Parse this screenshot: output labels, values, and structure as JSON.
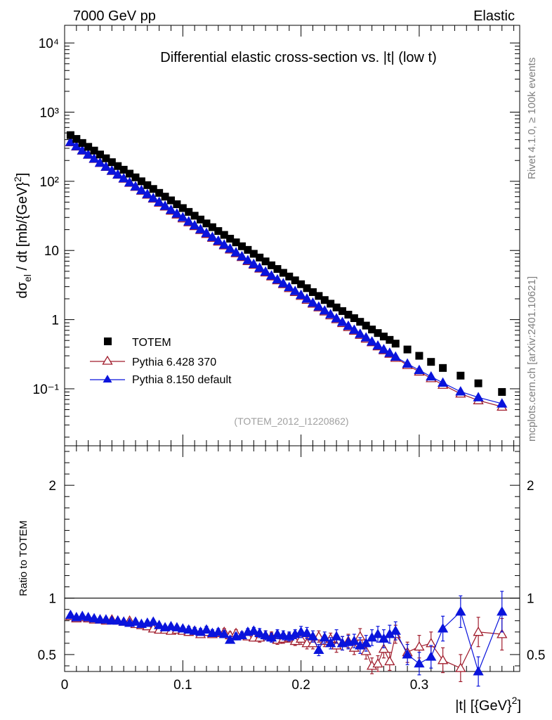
{
  "header": {
    "energy": "7000 GeV pp",
    "process": "Elastic"
  },
  "side_labels": {
    "rivet": "Rivet 4.1.0, ≥ 100k events",
    "source": "mcplots.cern.ch [arXiv:2401.10621]"
  },
  "chart_data": [
    {
      "type": "scatter",
      "title": "Differential elastic cross-section vs. |t| (low t)",
      "xlabel": "|t| [{GeV}²]",
      "ylabel": "dσel / dt [mb/{GeV}²]",
      "yscale": "log",
      "xlim": [
        0,
        0.385
      ],
      "ylim": [
        0.015,
        18000
      ],
      "analysis_id": "(TOTEM_2012_I1220862)",
      "ytick_labels": [
        "10⁻¹",
        "1",
        "10",
        "10²",
        "10³",
        "10⁴"
      ],
      "legend": {
        "position": "bottom-left",
        "entries": [
          "TOTEM",
          "Pythia 6.428 370",
          "Pythia 8.150 default"
        ]
      },
      "series": [
        {
          "name": "TOTEM",
          "color": "#000000",
          "marker": "square",
          "x": [
            0.005,
            0.01,
            0.015,
            0.02,
            0.025,
            0.03,
            0.035,
            0.04,
            0.045,
            0.05,
            0.055,
            0.06,
            0.065,
            0.07,
            0.075,
            0.08,
            0.085,
            0.09,
            0.095,
            0.1,
            0.105,
            0.11,
            0.115,
            0.12,
            0.125,
            0.13,
            0.135,
            0.14,
            0.145,
            0.15,
            0.155,
            0.16,
            0.165,
            0.17,
            0.175,
            0.18,
            0.185,
            0.19,
            0.195,
            0.2,
            0.205,
            0.21,
            0.215,
            0.22,
            0.225,
            0.23,
            0.235,
            0.24,
            0.245,
            0.25,
            0.255,
            0.26,
            0.265,
            0.27,
            0.275,
            0.28,
            0.29,
            0.3,
            0.31,
            0.32,
            0.335,
            0.35,
            0.37
          ],
          "values": [
            465,
            410,
            358,
            315,
            278,
            244,
            215,
            189,
            166,
            147,
            129,
            114,
            100,
            88,
            77.5,
            68,
            60,
            53,
            46.6,
            41,
            36.1,
            31.8,
            28,
            24.6,
            21.7,
            19.1,
            16.8,
            14.8,
            13.1,
            11.5,
            10.2,
            8.95,
            7.9,
            6.95,
            6.1,
            5.4,
            4.75,
            4.2,
            3.7,
            3.25,
            2.85,
            2.5,
            2.2,
            1.92,
            1.7,
            1.5,
            1.33,
            1.18,
            1.05,
            0.93,
            0.82,
            0.72,
            0.64,
            0.57,
            0.51,
            0.45,
            0.37,
            0.3,
            0.245,
            0.2,
            0.155,
            0.12,
            0.09
          ]
        },
        {
          "name": "Pythia 6.428 370",
          "color": "#a01c2c",
          "marker": "open-triangle",
          "x": [
            0.005,
            0.01,
            0.015,
            0.02,
            0.025,
            0.03,
            0.035,
            0.04,
            0.045,
            0.05,
            0.055,
            0.06,
            0.065,
            0.07,
            0.075,
            0.08,
            0.085,
            0.09,
            0.095,
            0.1,
            0.105,
            0.11,
            0.115,
            0.12,
            0.125,
            0.13,
            0.135,
            0.14,
            0.145,
            0.15,
            0.155,
            0.16,
            0.165,
            0.17,
            0.175,
            0.18,
            0.185,
            0.19,
            0.195,
            0.2,
            0.205,
            0.21,
            0.215,
            0.22,
            0.225,
            0.23,
            0.235,
            0.24,
            0.245,
            0.25,
            0.255,
            0.26,
            0.265,
            0.27,
            0.275,
            0.28,
            0.29,
            0.3,
            0.31,
            0.32,
            0.335,
            0.35,
            0.37
          ],
          "values": [
            365,
            318,
            277,
            241,
            210,
            184,
            161,
            141,
            124,
            109,
            95,
            83,
            73,
            64,
            56,
            49,
            43,
            37.5,
            33,
            29,
            25.5,
            22.4,
            19.7,
            17.3,
            15.2,
            13.4,
            11.8,
            10.3,
            9.1,
            8.0,
            7.0,
            6.2,
            5.45,
            4.8,
            4.2,
            3.7,
            3.25,
            2.85,
            2.5,
            2.2,
            1.93,
            1.7,
            1.5,
            1.31,
            1.15,
            1.01,
            0.89,
            0.78,
            0.69,
            0.6,
            0.53,
            0.47,
            0.41,
            0.36,
            0.32,
            0.28,
            0.22,
            0.177,
            0.142,
            0.114,
            0.085,
            0.068,
            0.055
          ]
        },
        {
          "name": "Pythia 8.150 default",
          "color": "#0a14dc",
          "marker": "filled-triangle",
          "x": [
            0.005,
            0.01,
            0.015,
            0.02,
            0.025,
            0.03,
            0.035,
            0.04,
            0.045,
            0.05,
            0.055,
            0.06,
            0.065,
            0.07,
            0.075,
            0.08,
            0.085,
            0.09,
            0.095,
            0.1,
            0.105,
            0.11,
            0.115,
            0.12,
            0.125,
            0.13,
            0.135,
            0.14,
            0.145,
            0.15,
            0.155,
            0.16,
            0.165,
            0.17,
            0.175,
            0.18,
            0.185,
            0.19,
            0.195,
            0.2,
            0.205,
            0.21,
            0.215,
            0.22,
            0.225,
            0.23,
            0.235,
            0.24,
            0.245,
            0.25,
            0.255,
            0.26,
            0.265,
            0.27,
            0.275,
            0.28,
            0.29,
            0.3,
            0.31,
            0.32,
            0.335,
            0.35,
            0.37
          ],
          "values": [
            370,
            320,
            279,
            243,
            212,
            185,
            162,
            142,
            125,
            110,
            96,
            84,
            74,
            65,
            57,
            50,
            44,
            38.5,
            34,
            30,
            26.2,
            23,
            20.2,
            17.8,
            15.6,
            13.8,
            12.1,
            10.6,
            9.35,
            8.2,
            7.2,
            6.35,
            5.6,
            4.92,
            4.32,
            3.8,
            3.34,
            2.94,
            2.58,
            2.27,
            2.0,
            1.75,
            1.54,
            1.35,
            1.19,
            1.04,
            0.92,
            0.81,
            0.71,
            0.62,
            0.55,
            0.48,
            0.42,
            0.37,
            0.33,
            0.29,
            0.23,
            0.186,
            0.15,
            0.122,
            0.091,
            0.075,
            0.061
          ]
        }
      ]
    },
    {
      "type": "scatter",
      "ylabel": "Ratio to TOTEM",
      "xlabel": "|t| [{GeV}²]",
      "xlim": [
        0,
        0.385
      ],
      "ylim": [
        0.35,
        2.35
      ],
      "xtick_labels": [
        "0",
        "0.1",
        "0.2",
        "0.3"
      ],
      "ytick_labels": [
        "0.5",
        "1",
        "2"
      ],
      "reference": 1,
      "series": [
        {
          "name": "Pythia 6.428 370",
          "color": "#a01c2c",
          "marker": "open-triangle",
          "x": [
            0.005,
            0.01,
            0.015,
            0.02,
            0.025,
            0.03,
            0.035,
            0.04,
            0.045,
            0.05,
            0.055,
            0.06,
            0.065,
            0.07,
            0.075,
            0.08,
            0.085,
            0.09,
            0.095,
            0.1,
            0.105,
            0.11,
            0.115,
            0.12,
            0.125,
            0.13,
            0.135,
            0.14,
            0.145,
            0.15,
            0.155,
            0.16,
            0.165,
            0.17,
            0.175,
            0.18,
            0.185,
            0.19,
            0.195,
            0.2,
            0.205,
            0.21,
            0.215,
            0.22,
            0.225,
            0.23,
            0.235,
            0.24,
            0.245,
            0.25,
            0.255,
            0.26,
            0.265,
            0.27,
            0.275,
            0.28,
            0.29,
            0.3,
            0.31,
            0.32,
            0.335,
            0.35,
            0.37
          ],
          "values": [
            0.84,
            0.82,
            0.83,
            0.82,
            0.81,
            0.81,
            0.8,
            0.81,
            0.8,
            0.79,
            0.8,
            0.77,
            0.76,
            0.75,
            0.73,
            0.72,
            0.72,
            0.71,
            0.72,
            0.71,
            0.7,
            0.71,
            0.68,
            0.7,
            0.68,
            0.69,
            0.7,
            0.67,
            0.69,
            0.67,
            0.66,
            0.65,
            0.65,
            0.67,
            0.66,
            0.63,
            0.64,
            0.65,
            0.62,
            0.64,
            0.6,
            0.6,
            0.66,
            0.62,
            0.64,
            0.58,
            0.6,
            0.62,
            0.56,
            0.66,
            0.53,
            0.4,
            0.42,
            0.55,
            0.44,
            0.68,
            0.52,
            0.57,
            0.6,
            0.45,
            0.38,
            0.7,
            0.68
          ],
          "errors": [
            0.02,
            0.02,
            0.02,
            0.02,
            0.02,
            0.02,
            0.02,
            0.02,
            0.02,
            0.02,
            0.02,
            0.02,
            0.02,
            0.02,
            0.02,
            0.02,
            0.02,
            0.02,
            0.02,
            0.02,
            0.03,
            0.03,
            0.03,
            0.03,
            0.03,
            0.03,
            0.03,
            0.03,
            0.03,
            0.03,
            0.03,
            0.03,
            0.04,
            0.04,
            0.04,
            0.04,
            0.04,
            0.04,
            0.04,
            0.05,
            0.05,
            0.05,
            0.05,
            0.05,
            0.05,
            0.06,
            0.06,
            0.06,
            0.06,
            0.07,
            0.07,
            0.07,
            0.07,
            0.08,
            0.08,
            0.08,
            0.09,
            0.1,
            0.1,
            0.11,
            0.12,
            0.13,
            0.14
          ]
        },
        {
          "name": "Pythia 8.150 default",
          "color": "#0a14dc",
          "marker": "filled-triangle",
          "x": [
            0.005,
            0.01,
            0.015,
            0.02,
            0.025,
            0.03,
            0.035,
            0.04,
            0.045,
            0.05,
            0.055,
            0.06,
            0.065,
            0.07,
            0.075,
            0.08,
            0.085,
            0.09,
            0.095,
            0.1,
            0.105,
            0.11,
            0.115,
            0.12,
            0.125,
            0.13,
            0.135,
            0.14,
            0.145,
            0.15,
            0.155,
            0.16,
            0.165,
            0.17,
            0.175,
            0.18,
            0.185,
            0.19,
            0.195,
            0.2,
            0.205,
            0.21,
            0.215,
            0.22,
            0.225,
            0.23,
            0.235,
            0.24,
            0.245,
            0.25,
            0.255,
            0.26,
            0.265,
            0.27,
            0.275,
            0.28,
            0.29,
            0.3,
            0.31,
            0.32,
            0.335,
            0.35,
            0.37
          ],
          "values": [
            0.85,
            0.83,
            0.84,
            0.83,
            0.82,
            0.81,
            0.81,
            0.8,
            0.8,
            0.79,
            0.78,
            0.79,
            0.77,
            0.78,
            0.79,
            0.76,
            0.74,
            0.75,
            0.74,
            0.73,
            0.72,
            0.71,
            0.7,
            0.72,
            0.69,
            0.7,
            0.68,
            0.63,
            0.66,
            0.67,
            0.7,
            0.71,
            0.69,
            0.67,
            0.65,
            0.68,
            0.67,
            0.66,
            0.68,
            0.7,
            0.69,
            0.66,
            0.54,
            0.65,
            0.6,
            0.66,
            0.6,
            0.61,
            0.62,
            0.58,
            0.6,
            0.65,
            0.68,
            0.64,
            0.68,
            0.71,
            0.5,
            0.42,
            0.48,
            0.73,
            0.88,
            0.35,
            0.88
          ],
          "errors": [
            0.02,
            0.02,
            0.02,
            0.02,
            0.02,
            0.02,
            0.02,
            0.02,
            0.02,
            0.02,
            0.02,
            0.02,
            0.02,
            0.02,
            0.02,
            0.02,
            0.02,
            0.02,
            0.02,
            0.02,
            0.03,
            0.03,
            0.03,
            0.03,
            0.03,
            0.03,
            0.03,
            0.03,
            0.03,
            0.03,
            0.03,
            0.03,
            0.04,
            0.04,
            0.04,
            0.04,
            0.04,
            0.04,
            0.04,
            0.05,
            0.05,
            0.05,
            0.05,
            0.05,
            0.05,
            0.06,
            0.06,
            0.06,
            0.06,
            0.07,
            0.07,
            0.07,
            0.07,
            0.08,
            0.08,
            0.08,
            0.09,
            0.1,
            0.1,
            0.11,
            0.14,
            0.13,
            0.18
          ]
        }
      ]
    }
  ]
}
